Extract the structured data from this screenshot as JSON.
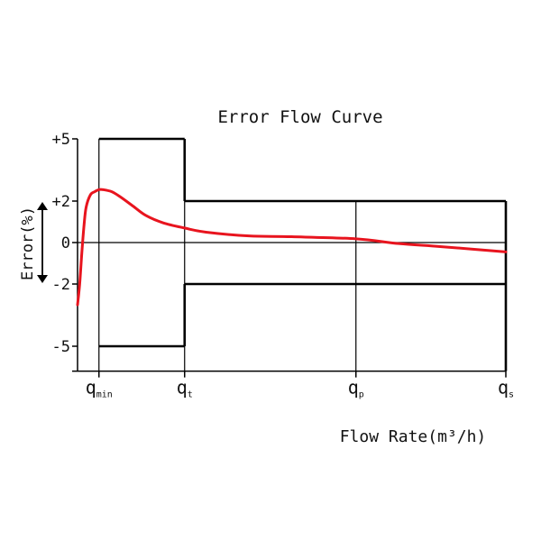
{
  "chart_data": {
    "type": "line",
    "title": "Error Flow Curve",
    "ylabel": "Error(%)",
    "xlabel": "Flow Rate(m³/h)",
    "ylim": [
      -6.2,
      5.2
    ],
    "y_ticks": [
      {
        "value": 5,
        "label": "+5"
      },
      {
        "value": 2,
        "label": "+2"
      },
      {
        "value": 0,
        "label": "0"
      },
      {
        "value": -2,
        "label": "-2"
      },
      {
        "value": -5,
        "label": "-5"
      }
    ],
    "x_ticks": [
      {
        "value": 0.05,
        "main": "q",
        "sub": "min"
      },
      {
        "value": 0.25,
        "main": "q",
        "sub": "t"
      },
      {
        "value": 0.65,
        "main": "q",
        "sub": "p"
      },
      {
        "value": 1.0,
        "main": "q",
        "sub": "s"
      }
    ],
    "error_limits": [
      {
        "x": [
          0.05,
          0.25
        ],
        "upper": 5,
        "lower": -5
      },
      {
        "x": [
          0.25,
          1.0
        ],
        "upper": 2,
        "lower": -2
      }
    ],
    "series": [
      {
        "color": "#e8141e",
        "x": [
          0.0,
          0.005,
          0.01,
          0.015,
          0.02,
          0.03,
          0.04,
          0.05,
          0.06,
          0.08,
          0.1,
          0.13,
          0.16,
          0.2,
          0.25,
          0.3,
          0.4,
          0.5,
          0.65,
          0.75,
          0.85,
          1.0
        ],
        "y": [
          -3.0,
          -2.0,
          -0.5,
          0.8,
          1.7,
          2.3,
          2.45,
          2.55,
          2.55,
          2.45,
          2.2,
          1.75,
          1.3,
          0.95,
          0.7,
          0.5,
          0.32,
          0.28,
          0.18,
          -0.05,
          -0.2,
          -0.45
        ]
      }
    ],
    "grid": false
  }
}
